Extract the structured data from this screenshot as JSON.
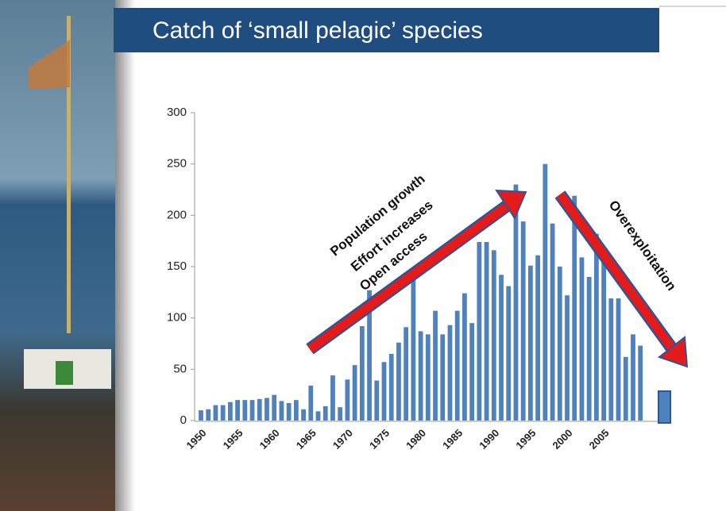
{
  "chart_data": {
    "type": "bar",
    "title": "Catch of ‘small pelagic’ species",
    "categories": [
      "1950",
      null,
      null,
      null,
      null,
      "1955",
      null,
      null,
      null,
      null,
      "1960",
      null,
      null,
      null,
      null,
      "1965",
      null,
      null,
      null,
      null,
      "1970",
      null,
      null,
      null,
      null,
      "1975",
      null,
      null,
      null,
      null,
      "1980",
      null,
      null,
      null,
      null,
      "1985",
      null,
      null,
      null,
      null,
      "1990",
      null,
      null,
      null,
      null,
      "1995",
      null,
      null,
      null,
      null,
      "2000",
      null,
      null,
      null,
      null,
      "2005",
      null,
      null,
      null,
      null,
      null
    ],
    "values": [
      10,
      11,
      15,
      15,
      18,
      20,
      20,
      20,
      21,
      22,
      25,
      19,
      17,
      20,
      11,
      34,
      9,
      14,
      44,
      13,
      40,
      54,
      92,
      127,
      39,
      57,
      65,
      76,
      91,
      140,
      87,
      84,
      107,
      84,
      93,
      107,
      124,
      95,
      174,
      174,
      166,
      142,
      131,
      230,
      194,
      151,
      161,
      250,
      192,
      150,
      122,
      219,
      159,
      140,
      182,
      166,
      119,
      119,
      62,
      84,
      73
    ],
    "color": "#4f81bd",
    "ylim": [
      0,
      300
    ],
    "yticks": [
      0,
      50,
      100,
      150,
      200,
      250,
      300
    ],
    "annotations": [
      "Population growth",
      "Effort increases",
      "Open access",
      "Overexploitation"
    ]
  }
}
